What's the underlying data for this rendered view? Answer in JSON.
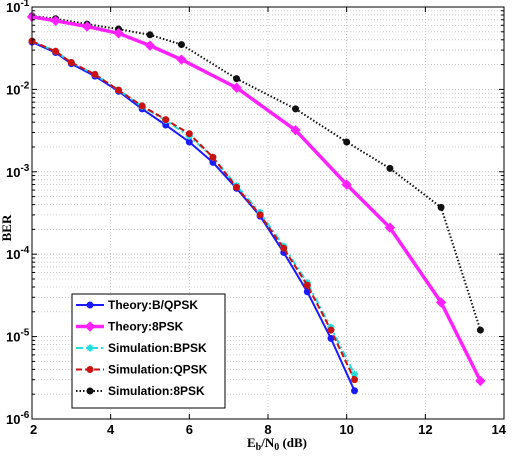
{
  "chart_data": {
    "type": "line",
    "xlabel": "Eb/N0 (dB)",
    "xlabel_main": "E",
    "xlabel_sub1": "b",
    "xlabel_mid": "/N",
    "xlabel_sub2": "0",
    "xlabel_tail": " (dB)",
    "ylabel": "BER",
    "xlim": [
      2,
      14
    ],
    "ylim": [
      1e-06,
      0.1
    ],
    "yscale": "log",
    "grid": true,
    "legend_position": "bottom-left",
    "x_ticks": [
      "2",
      "4",
      "6",
      "8",
      "10",
      "12",
      "14"
    ],
    "y_ticks": [
      {
        "base": "10",
        "exp": "-1",
        "value": 0.1
      },
      {
        "base": "10",
        "exp": "-2",
        "value": 0.01
      },
      {
        "base": "10",
        "exp": "-3",
        "value": 0.001
      },
      {
        "base": "10",
        "exp": "-4",
        "value": 0.0001
      },
      {
        "base": "10",
        "exp": "-5",
        "value": 1e-05
      },
      {
        "base": "10",
        "exp": "-6",
        "value": 1e-06
      }
    ],
    "series": [
      {
        "name": "Theory:B/QPSK",
        "color": "#1a1aff",
        "style": "solid",
        "marker": "dot",
        "x": [
          2.0,
          2.6,
          3.0,
          3.6,
          4.2,
          4.8,
          5.4,
          6.0,
          6.6,
          7.2,
          7.8,
          8.4,
          9.0,
          9.6,
          10.2
        ],
        "y": [
          0.0375,
          0.028,
          0.0205,
          0.0145,
          0.0095,
          0.0058,
          0.0037,
          0.0023,
          0.0013,
          0.00063,
          0.00029,
          0.000105,
          3.5e-05,
          9.5e-06,
          2.2e-06
        ]
      },
      {
        "name": "Theory:8PSK",
        "color": "#ff22ff",
        "style": "solid-thick",
        "marker": "diamond",
        "x": [
          2.0,
          2.6,
          3.4,
          4.2,
          5.0,
          5.8,
          7.2,
          8.7,
          10.0,
          11.1,
          12.4,
          13.4
        ],
        "y": [
          0.076,
          0.068,
          0.058,
          0.048,
          0.034,
          0.023,
          0.0105,
          0.0032,
          0.0007,
          0.00021,
          2.6e-05,
          2.9e-06
        ]
      },
      {
        "name": "Simulation:BPSK",
        "color": "#22dddd",
        "style": "dashdot",
        "marker": "star",
        "x": [
          2.0,
          2.6,
          3.0,
          3.6,
          4.2,
          4.8,
          5.4,
          6.0,
          6.6,
          7.2,
          7.8,
          8.4,
          9.0,
          9.6,
          10.2
        ],
        "y": [
          0.0385,
          0.029,
          0.0212,
          0.0152,
          0.0098,
          0.0062,
          0.0042,
          0.0027,
          0.0015,
          0.00068,
          0.00032,
          0.000125,
          4.5e-05,
          1.3e-05,
          3.5e-06
        ]
      },
      {
        "name": "Simulation:QPSK",
        "color": "#cc1111",
        "style": "dashed",
        "marker": "dot",
        "x": [
          2.0,
          2.6,
          3.0,
          3.6,
          4.2,
          4.8,
          5.4,
          6.0,
          6.6,
          7.2,
          7.8,
          8.4,
          9.0,
          9.6,
          10.2
        ],
        "y": [
          0.0385,
          0.029,
          0.0212,
          0.0152,
          0.0098,
          0.0063,
          0.0043,
          0.0029,
          0.0015,
          0.00065,
          0.0003,
          0.000118,
          4.2e-05,
          1.2e-05,
          3e-06
        ]
      },
      {
        "name": "Simulation:8PSK",
        "color": "#111111",
        "style": "dotted",
        "marker": "dot",
        "x": [
          2.0,
          2.6,
          3.4,
          4.2,
          5.0,
          5.8,
          7.2,
          8.7,
          10.0,
          11.1,
          12.4,
          13.4
        ],
        "y": [
          0.078,
          0.072,
          0.062,
          0.054,
          0.046,
          0.035,
          0.0135,
          0.0058,
          0.0023,
          0.0011,
          0.00037,
          1.2e-05
        ]
      }
    ]
  }
}
